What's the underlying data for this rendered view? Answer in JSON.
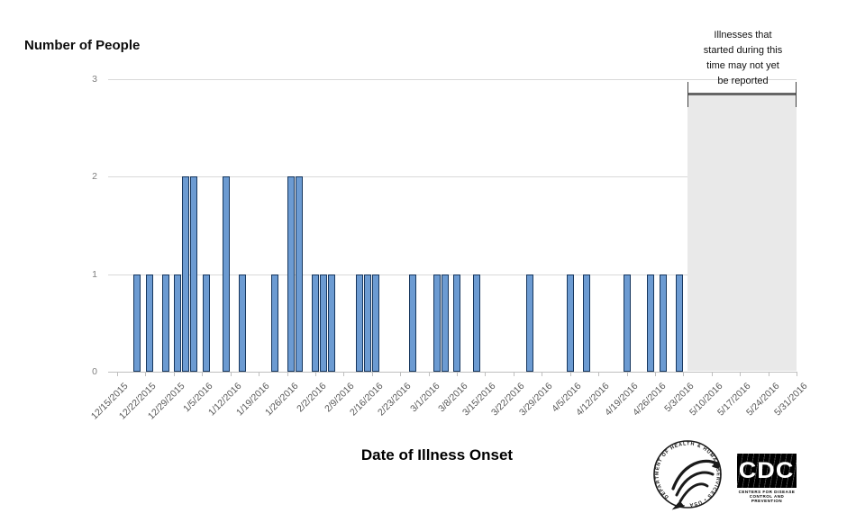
{
  "title": "Number of People",
  "x_axis_title": "Date of Illness Onset",
  "annotation_lines": [
    "Illnesses that",
    "started during this",
    "time may not yet",
    "be reported"
  ],
  "chart_data": {
    "type": "bar",
    "title": "Number of People",
    "xlabel": "Date of Illness Onset",
    "ylabel": "Number of People",
    "ylim": [
      0,
      3
    ],
    "grid": true,
    "y_ticks": [
      0,
      1,
      2,
      3
    ],
    "x_tick_labels": [
      "12/15/2015",
      "12/22/2015",
      "12/29/2015",
      "1/5/2016",
      "1/12/2016",
      "1/19/2016",
      "1/26/2016",
      "2/2/2016",
      "2/9/2016",
      "2/16/2016",
      "2/23/2016",
      "3/1/2016",
      "3/8/2016",
      "3/15/2016",
      "3/22/2016",
      "3/29/2016",
      "4/5/2016",
      "4/12/2016",
      "4/19/2016",
      "4/26/2016",
      "5/3/2016",
      "5/10/2016",
      "5/17/2016",
      "5/24/2016",
      "5/31/2016"
    ],
    "bar_color": "#6C9BD2",
    "bar_border_color": "#17375E",
    "bars": [
      {
        "date": "12/20/2015",
        "count": 1
      },
      {
        "date": "12/23/2015",
        "count": 1
      },
      {
        "date": "12/27/2015",
        "count": 1
      },
      {
        "date": "12/30/2015",
        "count": 1
      },
      {
        "date": "1/1/2016",
        "count": 2
      },
      {
        "date": "1/3/2016",
        "count": 2
      },
      {
        "date": "1/6/2016",
        "count": 1
      },
      {
        "date": "1/11/2016",
        "count": 2
      },
      {
        "date": "1/15/2016",
        "count": 1
      },
      {
        "date": "1/23/2016",
        "count": 1
      },
      {
        "date": "1/27/2016",
        "count": 2
      },
      {
        "date": "1/29/2016",
        "count": 2
      },
      {
        "date": "2/2/2016",
        "count": 1
      },
      {
        "date": "2/4/2016",
        "count": 1
      },
      {
        "date": "2/6/2016",
        "count": 1
      },
      {
        "date": "2/13/2016",
        "count": 1
      },
      {
        "date": "2/15/2016",
        "count": 1
      },
      {
        "date": "2/17/2016",
        "count": 1
      },
      {
        "date": "2/26/2016",
        "count": 1
      },
      {
        "date": "3/3/2016",
        "count": 1
      },
      {
        "date": "3/5/2016",
        "count": 1
      },
      {
        "date": "3/8/2016",
        "count": 1
      },
      {
        "date": "3/13/2016",
        "count": 1
      },
      {
        "date": "3/26/2016",
        "count": 1
      },
      {
        "date": "4/5/2016",
        "count": 1
      },
      {
        "date": "4/9/2016",
        "count": 1
      },
      {
        "date": "4/19/2016",
        "count": 1
      },
      {
        "date": "4/25/2016",
        "count": 1
      },
      {
        "date": "4/28/2016",
        "count": 1
      },
      {
        "date": "5/2/2016",
        "count": 1
      }
    ],
    "unreported_window": {
      "start": "5/4/2016",
      "end": "5/31/2016",
      "note": "Illnesses that started during this time may not yet be reported"
    },
    "legend_position": "none"
  },
  "logos": {
    "hhs_seal_text": "DEPARTMENT OF HEALTH & HUMAN SERVICES • USA",
    "cdc_acronym": "CDC",
    "cdc_caption_line1": "CENTERS FOR DISEASE",
    "cdc_caption_line2": "CONTROL AND PREVENTION"
  }
}
